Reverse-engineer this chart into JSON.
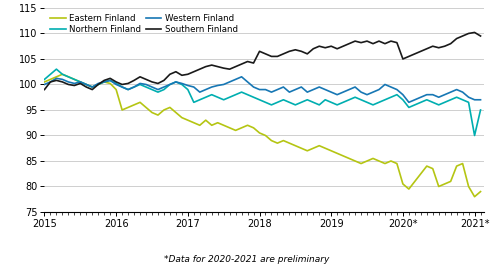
{
  "footnote": "*Data for 2020-2021 are preliminary",
  "ylim": [
    75,
    115
  ],
  "yticks": [
    75,
    80,
    85,
    90,
    95,
    100,
    105,
    110,
    115
  ],
  "xtick_labels": [
    "2015",
    "2016",
    "2017",
    "2018",
    "2019",
    "2020*",
    "2021*"
  ],
  "colors": {
    "Southern Finland": "#1a1a1a",
    "Western Finland": "#1777b4",
    "Eastern Finland": "#b5c513",
    "Northern Finland": "#00aeb0"
  },
  "linewidth": 1.2,
  "Southern Finland": [
    99.0,
    100.5,
    100.8,
    100.5,
    100.0,
    99.8,
    100.2,
    99.5,
    99.0,
    100.0,
    100.8,
    101.2,
    100.5,
    100.0,
    100.2,
    100.8,
    101.5,
    101.0,
    100.5,
    100.2,
    100.8,
    102.0,
    102.5,
    101.8,
    102.0,
    102.5,
    103.0,
    103.5,
    103.8,
    103.5,
    103.2,
    103.0,
    103.5,
    104.0,
    104.5,
    104.2,
    106.5,
    106.0,
    105.5,
    105.5,
    106.0,
    106.5,
    106.8,
    106.5,
    106.0,
    107.0,
    107.5,
    107.2,
    107.5,
    107.0,
    107.5,
    108.0,
    108.5,
    108.2,
    108.5,
    108.0,
    108.5,
    108.0,
    108.5,
    108.2,
    105.0,
    105.5,
    106.0,
    106.5,
    107.0,
    107.5,
    107.2,
    107.5,
    108.0,
    109.0,
    109.5,
    110.0,
    110.2,
    109.5
  ],
  "Western Finland": [
    100.0,
    100.5,
    101.2,
    101.0,
    100.5,
    100.2,
    100.5,
    100.0,
    99.5,
    100.2,
    100.5,
    100.8,
    100.0,
    99.5,
    99.0,
    99.5,
    100.2,
    100.0,
    99.5,
    99.0,
    99.5,
    100.0,
    100.5,
    100.2,
    99.8,
    99.5,
    98.5,
    99.0,
    99.5,
    99.8,
    100.0,
    100.5,
    101.0,
    101.5,
    100.5,
    99.5,
    99.0,
    99.0,
    98.5,
    99.0,
    99.5,
    98.5,
    99.0,
    99.5,
    98.5,
    99.0,
    99.5,
    99.0,
    98.5,
    98.0,
    98.5,
    99.0,
    99.5,
    98.5,
    98.0,
    98.5,
    99.0,
    100.0,
    99.5,
    99.0,
    98.0,
    96.5,
    97.0,
    97.5,
    98.0,
    98.0,
    97.5,
    98.0,
    98.5,
    99.0,
    98.5,
    97.5,
    97.0,
    97.0
  ],
  "Eastern Finland": [
    100.5,
    101.0,
    101.5,
    102.0,
    101.5,
    101.0,
    100.5,
    100.0,
    99.5,
    100.0,
    100.5,
    100.2,
    99.0,
    95.0,
    95.5,
    96.0,
    96.5,
    95.5,
    94.5,
    94.0,
    95.0,
    95.5,
    94.5,
    93.5,
    93.0,
    92.5,
    92.0,
    93.0,
    92.0,
    92.5,
    92.0,
    91.5,
    91.0,
    91.5,
    92.0,
    91.5,
    90.5,
    90.0,
    89.0,
    88.5,
    89.0,
    88.5,
    88.0,
    87.5,
    87.0,
    87.5,
    88.0,
    87.5,
    87.0,
    86.5,
    86.0,
    85.5,
    85.0,
    84.5,
    85.0,
    85.5,
    85.0,
    84.5,
    85.0,
    84.5,
    80.5,
    79.5,
    81.0,
    82.5,
    84.0,
    83.5,
    80.0,
    80.5,
    81.0,
    84.0,
    84.5,
    80.0,
    78.0,
    79.0
  ],
  "Northern Finland": [
    101.0,
    102.0,
    103.0,
    102.0,
    101.5,
    101.0,
    100.5,
    100.0,
    99.5,
    100.0,
    100.5,
    100.8,
    100.2,
    99.5,
    99.0,
    99.5,
    100.0,
    99.5,
    99.0,
    98.5,
    99.0,
    100.0,
    100.5,
    100.0,
    99.0,
    96.5,
    97.0,
    97.5,
    98.0,
    97.5,
    97.0,
    97.5,
    98.0,
    98.5,
    98.0,
    97.5,
    97.0,
    96.5,
    96.0,
    96.5,
    97.0,
    96.5,
    96.0,
    96.5,
    97.0,
    96.5,
    96.0,
    97.0,
    96.5,
    96.0,
    96.5,
    97.0,
    97.5,
    97.0,
    96.5,
    96.0,
    96.5,
    97.0,
    97.5,
    98.0,
    97.0,
    95.5,
    96.0,
    96.5,
    97.0,
    96.5,
    96.0,
    96.5,
    97.0,
    97.5,
    97.0,
    96.5,
    90.0,
    95.0
  ]
}
